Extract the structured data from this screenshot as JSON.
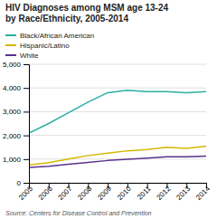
{
  "chart_data": {
    "type": "line",
    "title": "HIV Diagnoses among MSM age 13-24\nby Race/Ethnicity, 2005-2014",
    "annotations": [
      "Source: Centers for Disease Control and Prevention"
    ],
    "x": [
      2005,
      2006,
      2007,
      2008,
      2009,
      2010,
      2011,
      2012,
      2013,
      2014
    ],
    "series": [
      {
        "name": "Black/African American",
        "color": "#2aafa0",
        "values": [
          2100,
          2500,
          2950,
          3400,
          3800,
          3900,
          3850,
          3850,
          3800,
          3850
        ]
      },
      {
        "name": "Hispanic/Latino",
        "color": "#d4b800",
        "values": [
          750,
          850,
          1000,
          1150,
          1250,
          1350,
          1400,
          1500,
          1450,
          1550
        ]
      },
      {
        "name": "White",
        "color": "#5b3090",
        "values": [
          650,
          700,
          780,
          860,
          940,
          990,
          1040,
          1100,
          1100,
          1130
        ]
      }
    ],
    "xlim": [
      2005,
      2014
    ],
    "xticks": [
      2005,
      2006,
      2007,
      2008,
      2009,
      2010,
      2011,
      2012,
      2013,
      2014
    ],
    "ylim": [
      0,
      5000
    ],
    "yticks": [
      0,
      {
        "value": 1000,
        "label": "1,000"
      },
      {
        "value": 2000,
        "label": "2,000"
      },
      {
        "value": 3000,
        "label": "3,000"
      },
      {
        "value": 4000,
        "label": "4,000"
      },
      {
        "value": 5000,
        "label": "5,000"
      }
    ],
    "grid": true,
    "legend": "top"
  }
}
